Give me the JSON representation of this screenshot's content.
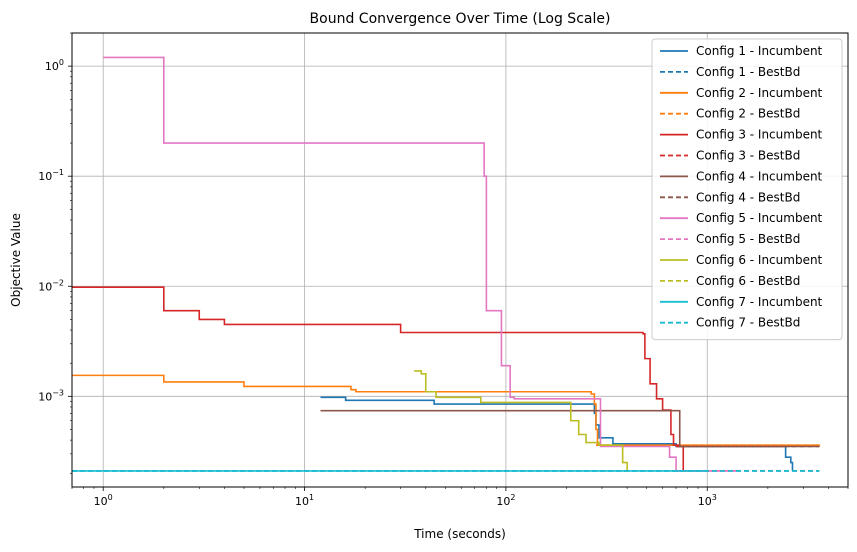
{
  "chart_data": {
    "type": "line",
    "title": "Bound Convergence Over Time (Log Scale)",
    "xlabel": "Time (seconds)",
    "ylabel": "Objective Value",
    "xscale": "log",
    "yscale": "log",
    "xlim": [
      0.7,
      5000
    ],
    "ylim": [
      0.00015,
      2.0
    ],
    "grid": true,
    "legend_position": "top-right",
    "x_ticks": [
      {
        "value": 1,
        "base": "10",
        "exp": "0"
      },
      {
        "value": 10,
        "base": "10",
        "exp": "1"
      },
      {
        "value": 100,
        "base": "10",
        "exp": "2"
      },
      {
        "value": 1000,
        "base": "10",
        "exp": "3"
      }
    ],
    "y_ticks": [
      {
        "value": 0.001,
        "base": "10",
        "exp": "−3"
      },
      {
        "value": 0.01,
        "base": "10",
        "exp": "−2"
      },
      {
        "value": 0.1,
        "base": "10",
        "exp": "−1"
      },
      {
        "value": 1,
        "base": "10",
        "exp": "0"
      }
    ],
    "series": [
      {
        "name": "Config 1 - Incumbent",
        "color": "#1f77b4",
        "style": "solid",
        "points": [
          [
            12,
            0.00098
          ],
          [
            15,
            0.00098
          ],
          [
            16,
            0.00092
          ],
          [
            40,
            0.00092
          ],
          [
            44,
            0.00085
          ],
          [
            100,
            0.00085
          ],
          [
            270,
            0.00085
          ],
          [
            275,
            0.0007
          ],
          [
            280,
            0.00055
          ],
          [
            290,
            0.00042
          ],
          [
            330,
            0.00042
          ],
          [
            340,
            0.00037
          ],
          [
            650,
            0.00037
          ],
          [
            700,
            0.00035
          ],
          [
            2400,
            0.00035
          ],
          [
            2450,
            0.00028
          ],
          [
            2550,
            0.00028
          ],
          [
            2600,
            0.00025
          ],
          [
            2650,
            0.00021
          ]
        ]
      },
      {
        "name": "Config 1 - BestBd",
        "color": "#1f77b4",
        "style": "dashed",
        "points": [
          [
            0.7,
            0.00021
          ],
          [
            3600,
            0.00021
          ]
        ]
      },
      {
        "name": "Config 2 - Incumbent",
        "color": "#ff7f0e",
        "style": "solid",
        "points": [
          [
            0.7,
            0.00155
          ],
          [
            1,
            0.00155
          ],
          [
            2,
            0.00135
          ],
          [
            5,
            0.00123
          ],
          [
            15,
            0.00123
          ],
          [
            17,
            0.00115
          ],
          [
            18,
            0.0011
          ],
          [
            250,
            0.0011
          ],
          [
            265,
            0.00105
          ],
          [
            275,
            0.00085
          ],
          [
            280,
            0.0005
          ],
          [
            285,
            0.00036
          ],
          [
            3600,
            0.00035
          ]
        ]
      },
      {
        "name": "Config 2 - BestBd",
        "color": "#ff7f0e",
        "style": "dashed",
        "points": [
          [
            280,
            0.00036
          ],
          [
            3600,
            0.00035
          ]
        ]
      },
      {
        "name": "Config 3 - Incumbent",
        "color": "#d62728",
        "style": "solid",
        "points": [
          [
            0.7,
            0.0098
          ],
          [
            1,
            0.0098
          ],
          [
            2,
            0.006
          ],
          [
            3,
            0.005
          ],
          [
            4,
            0.0045
          ],
          [
            25,
            0.0045
          ],
          [
            30,
            0.0038
          ],
          [
            480,
            0.0037
          ],
          [
            490,
            0.0022
          ],
          [
            520,
            0.0013
          ],
          [
            560,
            0.00095
          ],
          [
            600,
            0.00075
          ],
          [
            640,
            0.00075
          ],
          [
            660,
            0.00045
          ],
          [
            680,
            0.00036
          ],
          [
            720,
            0.00035
          ],
          [
            760,
            0.00021
          ]
        ]
      },
      {
        "name": "Config 3 - BestBd",
        "color": "#d62728",
        "style": "dashed",
        "points": [
          [
            700,
            0.00035
          ],
          [
            2400,
            0.00035
          ]
        ]
      },
      {
        "name": "Config 4 - Incumbent",
        "color": "#8c564b",
        "style": "solid",
        "points": [
          [
            12,
            0.00074
          ],
          [
            700,
            0.00074
          ],
          [
            730,
            0.00035
          ],
          [
            3600,
            0.00035
          ]
        ]
      },
      {
        "name": "Config 4 - BestBd",
        "color": "#8c564b",
        "style": "dashed",
        "points": [
          [
            730,
            0.00035
          ],
          [
            3600,
            0.00035
          ]
        ]
      },
      {
        "name": "Config 5 - Incumbent",
        "color": "#e377c2",
        "style": "solid",
        "points": [
          [
            1,
            1.2
          ],
          [
            2,
            0.2
          ],
          [
            75,
            0.2
          ],
          [
            78,
            0.1
          ],
          [
            80,
            0.006
          ],
          [
            90,
            0.006
          ],
          [
            95,
            0.0019
          ],
          [
            100,
            0.0019
          ],
          [
            105,
            0.00098
          ],
          [
            110,
            0.00095
          ],
          [
            290,
            0.00095
          ],
          [
            295,
            0.00035
          ],
          [
            620,
            0.00035
          ],
          [
            650,
            0.00028
          ],
          [
            700,
            0.00021
          ],
          [
            1400,
            0.00021
          ]
        ]
      },
      {
        "name": "Config 5 - BestBd",
        "color": "#e377c2",
        "style": "dashed",
        "points": [
          [
            700,
            0.00021
          ],
          [
            1400,
            0.00021
          ]
        ]
      },
      {
        "name": "Config 6 - Incumbent",
        "color": "#bcbd22",
        "style": "solid",
        "points": [
          [
            35,
            0.0017
          ],
          [
            38,
            0.0016
          ],
          [
            40,
            0.0011
          ],
          [
            45,
            0.00098
          ],
          [
            70,
            0.00098
          ],
          [
            75,
            0.00088
          ],
          [
            200,
            0.00088
          ],
          [
            210,
            0.0006
          ],
          [
            230,
            0.00045
          ],
          [
            250,
            0.00038
          ],
          [
            290,
            0.00036
          ],
          [
            350,
            0.00036
          ],
          [
            380,
            0.00025
          ],
          [
            400,
            0.00021
          ]
        ]
      },
      {
        "name": "Config 6 - BestBd",
        "color": "#bcbd22",
        "style": "dashed",
        "points": [
          [
            290,
            0.00036
          ],
          [
            380,
            0.00036
          ]
        ]
      },
      {
        "name": "Config 7 - Incumbent",
        "color": "#17becf",
        "style": "solid",
        "points": [
          [
            0.7,
            0.00021
          ],
          [
            1000,
            0.00021
          ]
        ]
      },
      {
        "name": "Config 7 - BestBd",
        "color": "#17becf",
        "style": "dashed",
        "points": [
          [
            0.7,
            0.00021
          ],
          [
            3600,
            0.00021
          ]
        ]
      }
    ]
  }
}
